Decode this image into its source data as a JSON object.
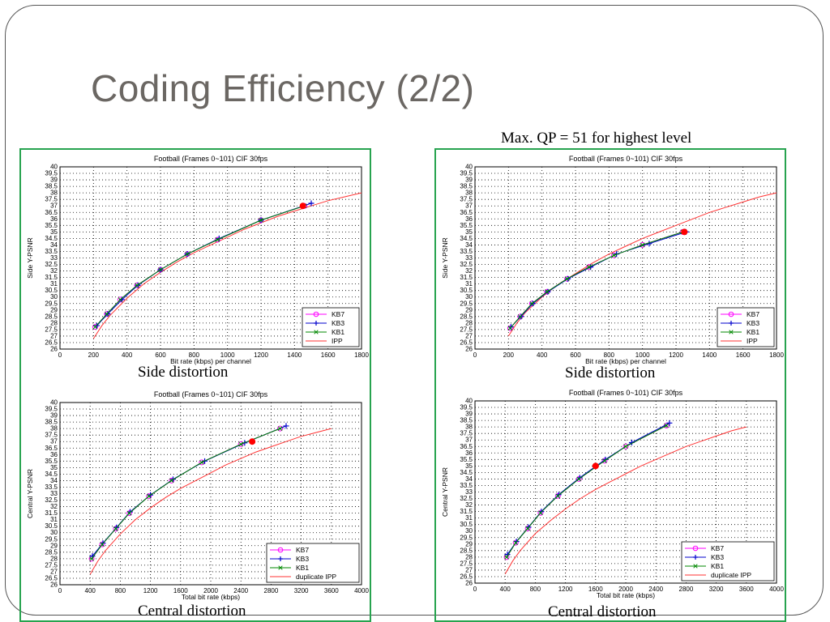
{
  "slide": {
    "title": "Coding Efficiency (2/2)",
    "note": "Max. QP = 51 for highest level",
    "captions": [
      "Side distortion",
      "Side distortion",
      "Central distortion",
      "Central distortion"
    ]
  },
  "colors": {
    "KB7": "#ff00ff",
    "KB3": "#0000cc",
    "KB1": "#008800",
    "IPP": "#ff3333",
    "highlight": "#ff0000",
    "box": "#27a34f"
  },
  "chart_data": [
    {
      "type": "line",
      "title": "Football (Frames 0~101) CIF 30fps",
      "xlabel": "Bit rate (kbps) per channel",
      "ylabel": "Side Y-PSNR",
      "xlim": [
        0,
        1800
      ],
      "ylim": [
        26,
        40
      ],
      "xticks": [
        0,
        200,
        400,
        600,
        800,
        1000,
        1200,
        1400,
        1600,
        1800
      ],
      "ystep": 0.5,
      "grid": true,
      "legend_position": "bottom-right",
      "series": [
        {
          "name": "KB7",
          "marker": "o",
          "x": [
            210,
            280,
            360,
            460,
            600,
            760,
            940,
            1200,
            1460
          ],
          "y": [
            27.7,
            28.7,
            29.8,
            30.9,
            32.1,
            33.3,
            34.4,
            35.9,
            37.0
          ]
        },
        {
          "name": "KB3",
          "marker": "+",
          "x": [
            220,
            285,
            370,
            465,
            600,
            760,
            950,
            1200,
            1500
          ],
          "y": [
            27.8,
            28.7,
            29.8,
            30.9,
            32.1,
            33.3,
            34.5,
            35.9,
            37.2
          ]
        },
        {
          "name": "KB1",
          "marker": "x",
          "x": [
            210,
            280,
            360,
            460,
            600,
            760,
            940,
            1200,
            1460
          ],
          "y": [
            27.7,
            28.7,
            29.8,
            30.9,
            32.1,
            33.3,
            34.4,
            35.9,
            37.0
          ]
        },
        {
          "name": "IPP",
          "marker": "",
          "x": [
            200,
            250,
            300,
            400,
            500,
            600,
            700,
            800,
            900,
            1000,
            1100,
            1200,
            1300,
            1400,
            1500,
            1600,
            1700,
            1800
          ],
          "y": [
            26.8,
            27.8,
            28.6,
            29.9,
            31.0,
            31.9,
            32.7,
            33.4,
            34.0,
            34.6,
            35.2,
            35.7,
            36.2,
            36.6,
            37.0,
            37.4,
            37.7,
            38.0
          ]
        }
      ],
      "highlight": {
        "x": 1450,
        "y": 37.0
      }
    },
    {
      "type": "line",
      "title": "Football (Frames 0~101) CIF 30fps",
      "xlabel": "Bit rate (kbps) per channel",
      "ylabel": "Side Y-PSNR",
      "xlim": [
        0,
        1800
      ],
      "ylim": [
        26,
        40
      ],
      "xticks": [
        0,
        200,
        400,
        600,
        800,
        1000,
        1200,
        1400,
        1600,
        1800
      ],
      "ystep": 0.5,
      "grid": true,
      "legend_position": "bottom-right",
      "series": [
        {
          "name": "KB7",
          "marker": "o",
          "x": [
            210,
            270,
            340,
            430,
            550,
            680,
            830,
            1000,
            1240
          ],
          "y": [
            27.6,
            28.5,
            29.5,
            30.4,
            31.4,
            32.3,
            33.2,
            34.0,
            35.0
          ]
        },
        {
          "name": "KB3",
          "marker": "+",
          "x": [
            215,
            275,
            345,
            435,
            555,
            690,
            845,
            1040,
            1260
          ],
          "y": [
            27.7,
            28.5,
            29.5,
            30.4,
            31.4,
            32.3,
            33.3,
            34.1,
            35.0
          ]
        },
        {
          "name": "KB1",
          "marker": "x",
          "x": [
            210,
            270,
            340,
            430,
            550,
            680,
            830,
            1000,
            1240
          ],
          "y": [
            27.6,
            28.5,
            29.5,
            30.4,
            31.4,
            32.3,
            33.2,
            34.0,
            35.0
          ]
        },
        {
          "name": "IPP",
          "marker": "",
          "x": [
            200,
            250,
            300,
            400,
            500,
            600,
            700,
            800,
            900,
            1000,
            1100,
            1200,
            1300,
            1400,
            1500,
            1600,
            1700,
            1800
          ],
          "y": [
            27.0,
            28.0,
            28.8,
            30.0,
            31.0,
            31.8,
            32.6,
            33.3,
            33.9,
            34.5,
            35.0,
            35.5,
            36.0,
            36.5,
            36.9,
            37.3,
            37.7,
            38.0
          ]
        }
      ],
      "highlight": {
        "x": 1250,
        "y": 35.0
      }
    },
    {
      "type": "line",
      "title": "Football (Frames 0~101) CIF 30fps",
      "xlabel": "Total bit rate (kbps)",
      "ylabel": "Central Y-PSNR",
      "xlim": [
        0,
        4000
      ],
      "ylim": [
        26,
        40
      ],
      "xticks": [
        0,
        400,
        800,
        1200,
        1600,
        2000,
        2400,
        2800,
        3200,
        3600,
        4000
      ],
      "ystep": 0.5,
      "grid": true,
      "legend_position": "bottom-right",
      "series": [
        {
          "name": "KB7",
          "marker": "o",
          "x": [
            420,
            560,
            740,
            920,
            1180,
            1480,
            1880,
            2400,
            2920
          ],
          "y": [
            28.0,
            29.1,
            30.3,
            31.5,
            32.8,
            34.0,
            35.4,
            36.8,
            38.0
          ]
        },
        {
          "name": "KB3",
          "marker": "+",
          "x": [
            430,
            570,
            750,
            930,
            1200,
            1500,
            1920,
            2450,
            3000
          ],
          "y": [
            28.2,
            29.2,
            30.4,
            31.6,
            32.9,
            34.1,
            35.5,
            36.9,
            38.2
          ]
        },
        {
          "name": "KB1",
          "marker": "x",
          "x": [
            420,
            560,
            740,
            920,
            1180,
            1480,
            1880,
            2400,
            2920
          ],
          "y": [
            28.0,
            29.1,
            30.3,
            31.5,
            32.8,
            34.0,
            35.4,
            36.8,
            38.0
          ]
        },
        {
          "name": "duplicate IPP",
          "marker": "",
          "x": [
            400,
            500,
            600,
            800,
            1000,
            1200,
            1400,
            1600,
            1800,
            2000,
            2200,
            2400,
            2600,
            2800,
            3000,
            3200,
            3400,
            3600
          ],
          "y": [
            26.8,
            27.8,
            28.6,
            29.9,
            31.0,
            31.9,
            32.7,
            33.4,
            34.0,
            34.6,
            35.2,
            35.7,
            36.2,
            36.6,
            37.0,
            37.4,
            37.7,
            38.0
          ]
        }
      ],
      "highlight": {
        "x": 2550,
        "y": 37.0
      }
    },
    {
      "type": "line",
      "title": "Football (Frames 0~101) CIF 30fps",
      "xlabel": "Total bit rate (kbps)",
      "ylabel": "Central Y-PSNR",
      "xlim": [
        0,
        4000
      ],
      "ylim": [
        26,
        40
      ],
      "xticks": [
        0,
        400,
        800,
        1200,
        1600,
        2000,
        2400,
        2800,
        3200,
        3600,
        4000
      ],
      "ystep": 0.5,
      "grid": true,
      "legend_position": "bottom-right",
      "series": [
        {
          "name": "KB7",
          "marker": "o",
          "x": [
            420,
            540,
            700,
            870,
            1100,
            1380,
            1720,
            2000,
            2540
          ],
          "y": [
            28.0,
            29.1,
            30.2,
            31.4,
            32.7,
            34.0,
            35.4,
            36.5,
            38.1
          ]
        },
        {
          "name": "KB3",
          "marker": "+",
          "x": [
            430,
            550,
            710,
            880,
            1110,
            1390,
            1730,
            2080,
            2580
          ],
          "y": [
            28.2,
            29.2,
            30.3,
            31.5,
            32.8,
            34.1,
            35.5,
            36.8,
            38.3
          ]
        },
        {
          "name": "KB1",
          "marker": "x",
          "x": [
            420,
            540,
            700,
            870,
            1100,
            1380,
            1720,
            2000,
            2540
          ],
          "y": [
            28.0,
            29.1,
            30.2,
            31.4,
            32.7,
            34.0,
            35.4,
            36.5,
            38.1
          ]
        },
        {
          "name": "duplicate IPP",
          "marker": "",
          "x": [
            400,
            500,
            600,
            800,
            1000,
            1200,
            1400,
            1600,
            1800,
            2000,
            2200,
            2400,
            2600,
            2800,
            3000,
            3200,
            3400,
            3600
          ],
          "y": [
            26.7,
            27.7,
            28.5,
            29.8,
            30.8,
            31.7,
            32.5,
            33.2,
            33.8,
            34.4,
            35.0,
            35.5,
            36.0,
            36.5,
            36.9,
            37.3,
            37.7,
            38.0
          ]
        }
      ],
      "highlight": {
        "x": 1600,
        "y": 35.0
      }
    }
  ]
}
